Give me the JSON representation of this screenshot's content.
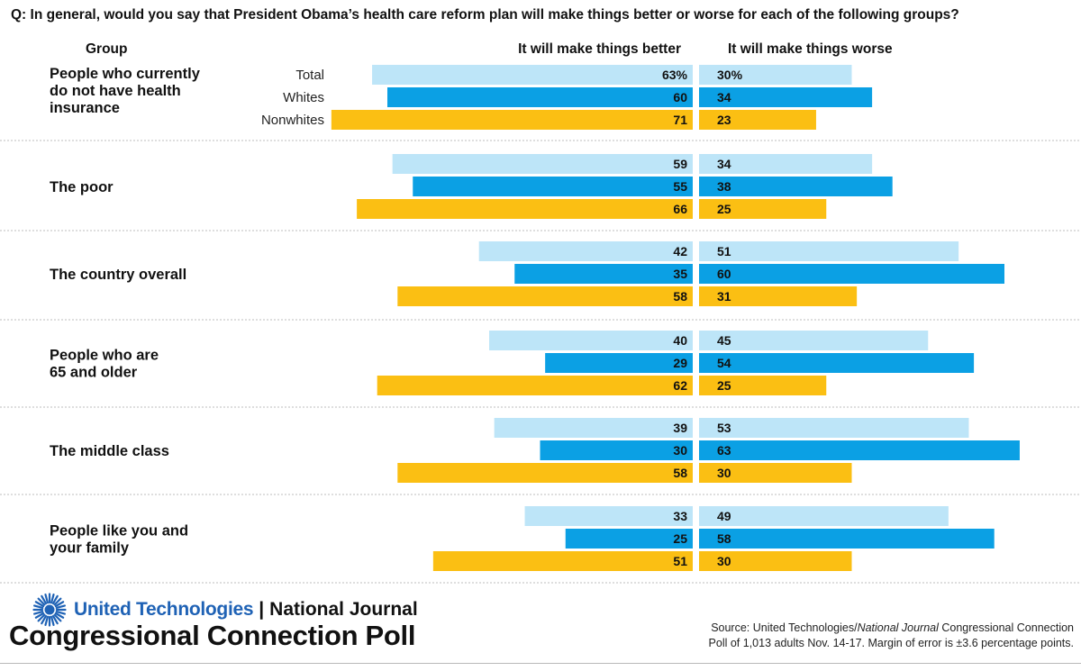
{
  "question": "Q: In general, would you say that President Obama’s health care reform plan will make things better or worse for each of the following groups?",
  "headers": {
    "group": "Group",
    "better": "It will make things better",
    "worse": "It will make things worse"
  },
  "colors": {
    "Total": "#bde5f8",
    "Whites": "#0ba0e4",
    "Nonwhites": "#fbbf13",
    "divider": "#bdbdbd"
  },
  "chart_data": {
    "type": "bar",
    "orientation": "horizontal-diverging",
    "categories": [
      "People who currently do not have health insurance",
      "The poor",
      "The country overall",
      "People who are 65 and older",
      "The middle class",
      "People like you and your family"
    ],
    "subgroups": [
      "Total",
      "Whites",
      "Nonwhites"
    ],
    "series": [
      {
        "name": "It will make things better",
        "direction": "left",
        "values": [
          [
            63,
            60,
            71
          ],
          [
            59,
            55,
            66
          ],
          [
            42,
            35,
            58
          ],
          [
            40,
            29,
            62
          ],
          [
            39,
            30,
            58
          ],
          [
            33,
            25,
            51
          ]
        ]
      },
      {
        "name": "It will make things worse",
        "direction": "right",
        "values": [
          [
            30,
            34,
            23
          ],
          [
            34,
            38,
            25
          ],
          [
            51,
            60,
            31
          ],
          [
            45,
            54,
            25
          ],
          [
            53,
            63,
            30
          ],
          [
            49,
            58,
            30
          ]
        ]
      }
    ],
    "first_row_suffix": "%",
    "grid": false,
    "legend": "none"
  },
  "groups": [
    {
      "label_lines": [
        "People who currently",
        "do not have health",
        "insurance"
      ],
      "show_subgroups": true
    },
    {
      "label_lines": [
        "The poor"
      ],
      "show_subgroups": false
    },
    {
      "label_lines": [
        "The country overall"
      ],
      "show_subgroups": false
    },
    {
      "label_lines": [
        "People who are",
        "65 and older"
      ],
      "show_subgroups": false
    },
    {
      "label_lines": [
        "The middle class"
      ],
      "show_subgroups": false
    },
    {
      "label_lines": [
        "People like you and",
        "your family"
      ],
      "show_subgroups": false
    }
  ],
  "footer": {
    "sponsor": "United Technologies",
    "separator": "|",
    "partner": "National Journal",
    "poll_name": "Congressional Connection Poll",
    "source_prefix": "Source: United Technologies/",
    "source_italic": "National Journal",
    "source_line1_rest": " Congressional Connection",
    "source_line2": "Poll of 1,013 adults Nov. 14-17. Margin of error is ±3.6 percentage points."
  }
}
